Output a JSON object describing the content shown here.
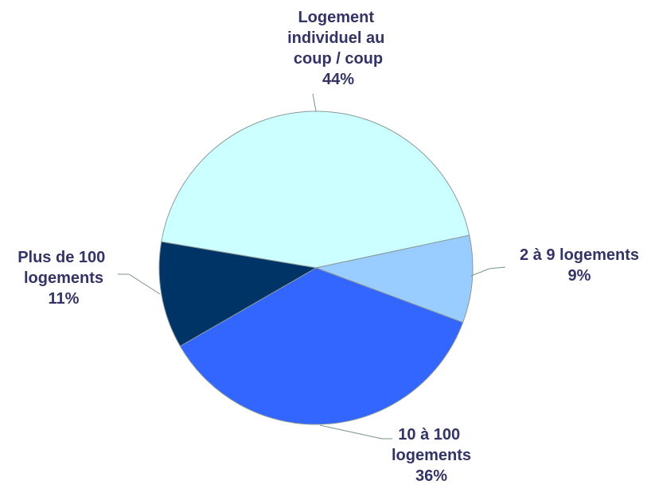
{
  "chart_data": {
    "type": "pie",
    "categories": [
      "Logement individuel au coup / coup",
      "2 à 9 logements",
      "10 à 100 logements",
      "Plus de 100 logements"
    ],
    "values": [
      44,
      9,
      36,
      11
    ],
    "value_labels": [
      "44%",
      "9%",
      "36%",
      "11%"
    ],
    "colors": [
      "#ccffff",
      "#99ccff",
      "#3366ff",
      "#003366"
    ]
  }
}
